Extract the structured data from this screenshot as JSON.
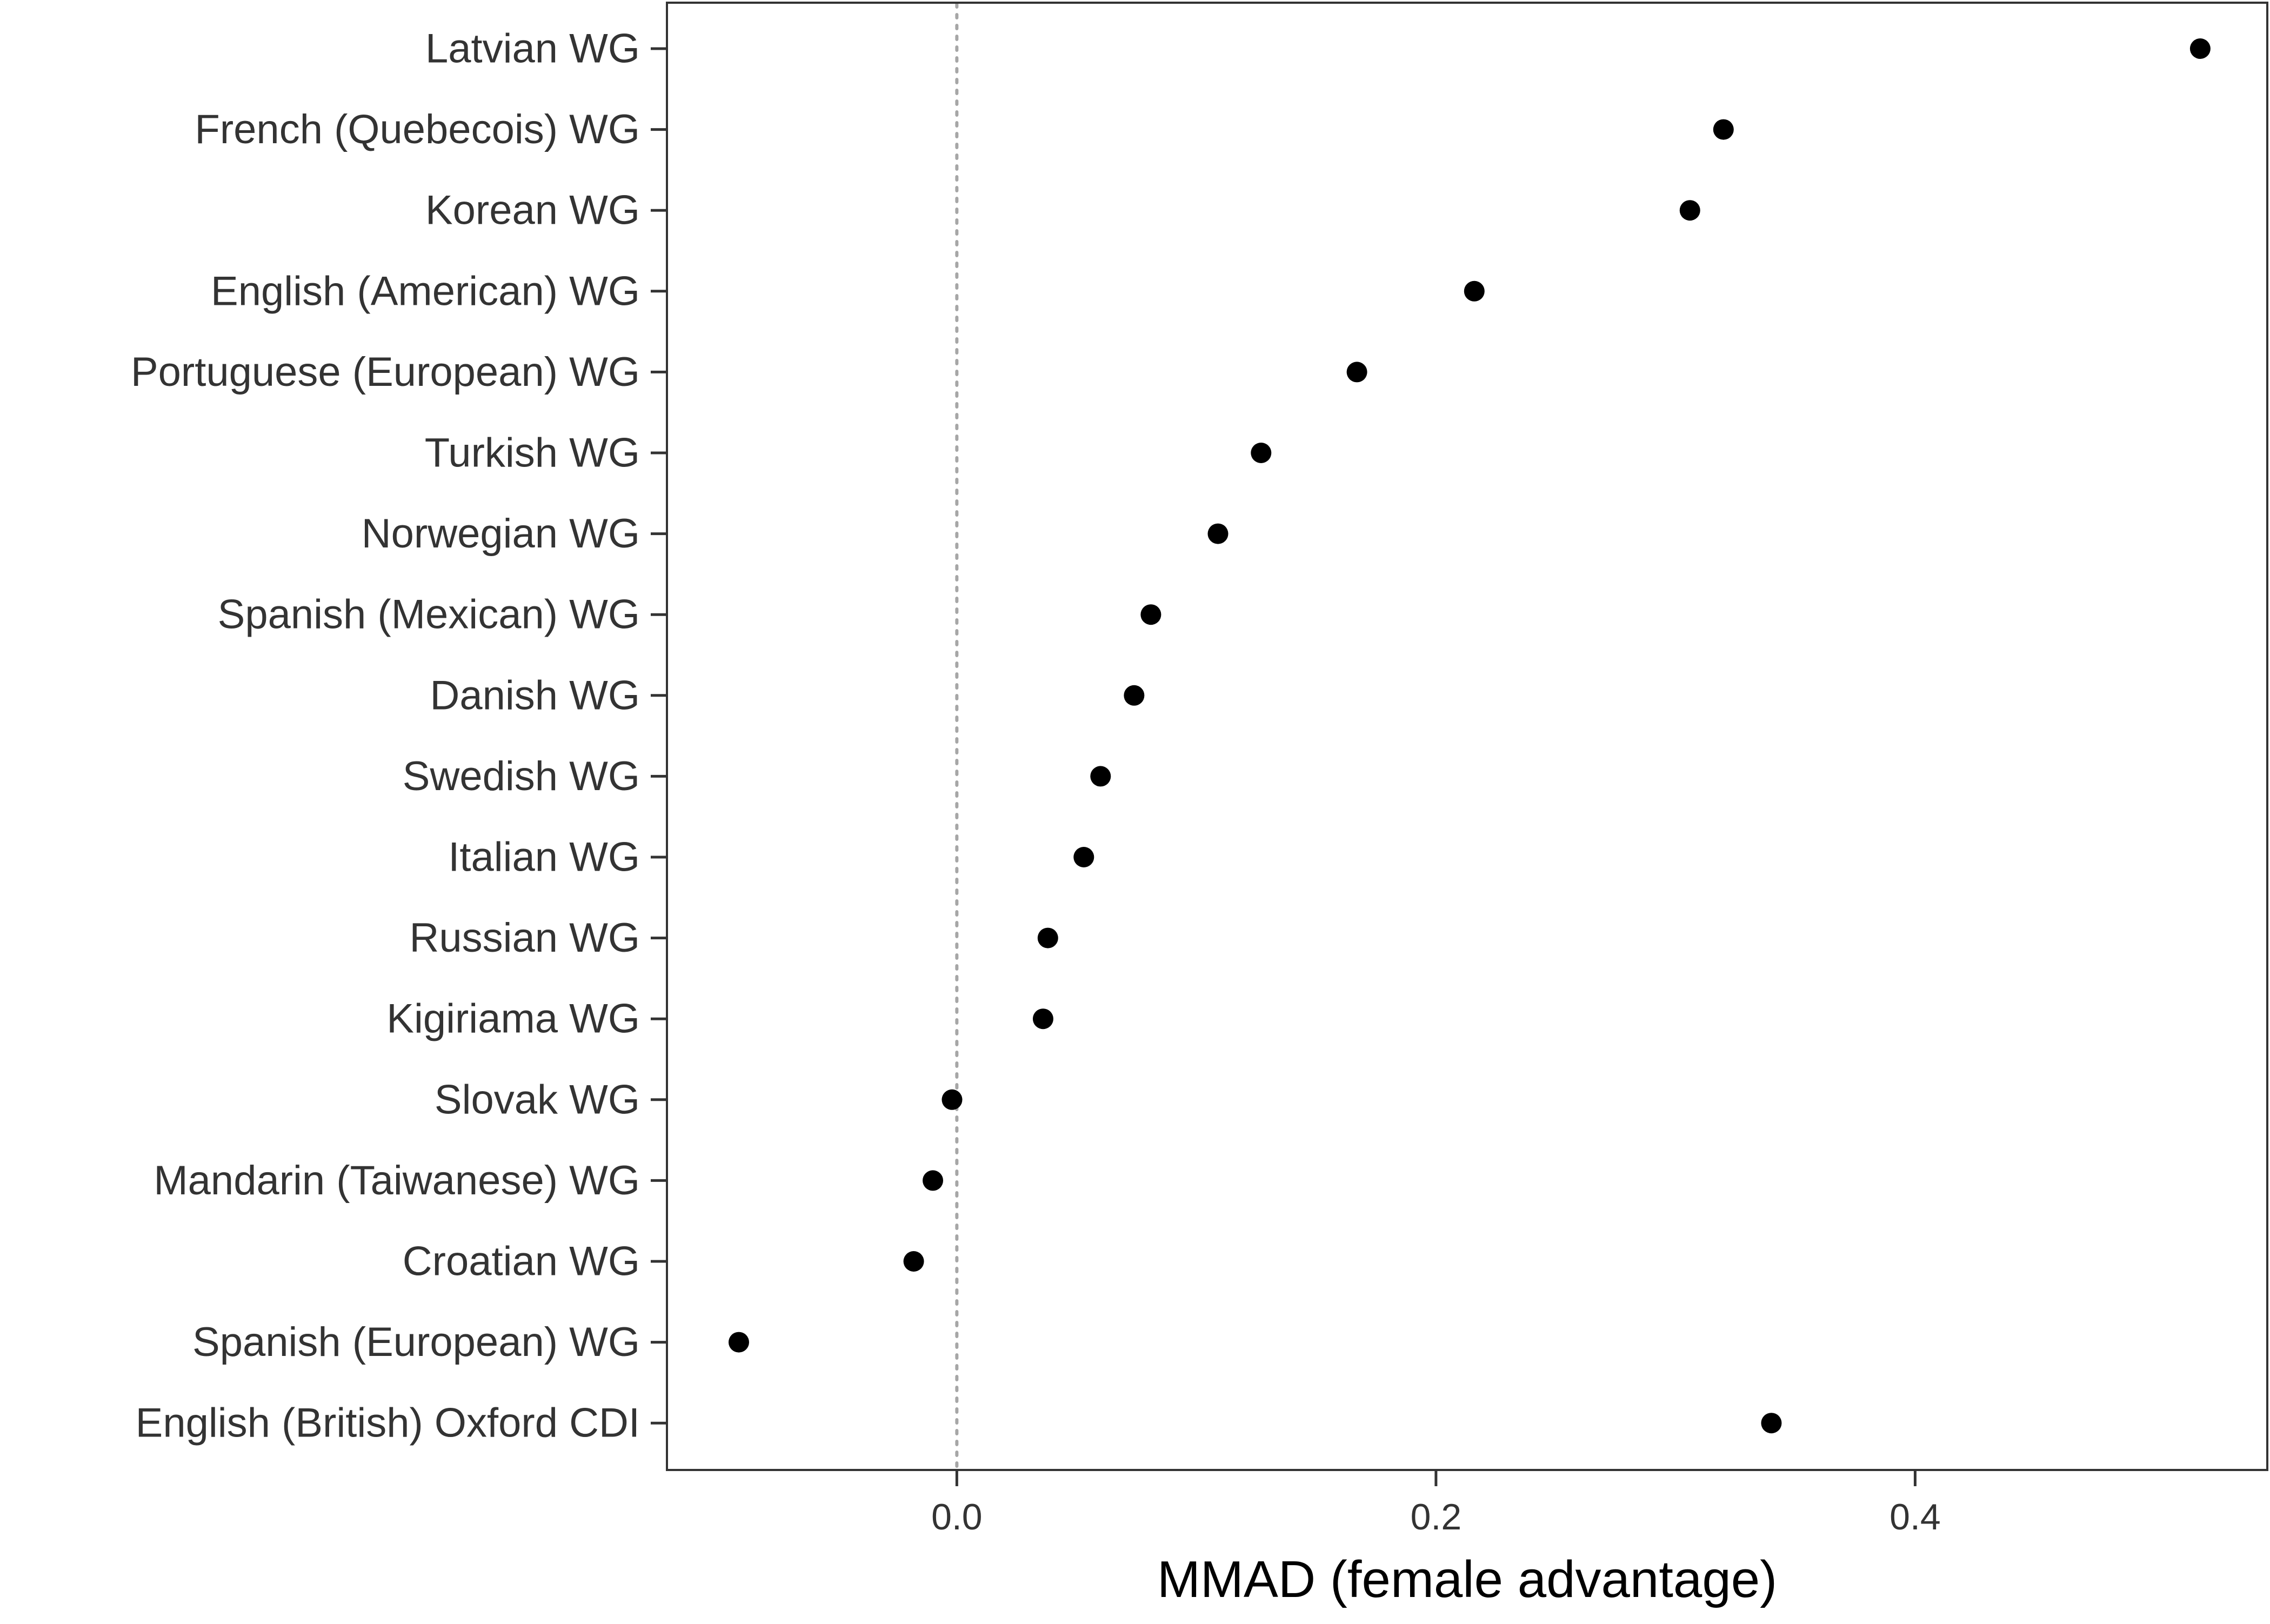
{
  "chart_data": {
    "type": "scatter",
    "title": "",
    "xlabel": "MMAD (female advantage)",
    "ylabel": "",
    "xlim": [
      -0.121,
      0.547
    ],
    "xticks": [
      0.0,
      0.2,
      0.4
    ],
    "xtick_labels": [
      "0.0",
      "0.2",
      "0.4"
    ],
    "reference_line": {
      "x": 0.0,
      "style": "dotted",
      "color": "#a6a6a6"
    },
    "grid": false,
    "legend": "none",
    "point_color": "#000000",
    "categories": [
      "Latvian WG",
      "French (Quebecois) WG",
      "Korean WG",
      "English (American) WG",
      "Portuguese (European) WG",
      "Turkish WG",
      "Norwegian WG",
      "Spanish (Mexican) WG",
      "Danish WG",
      "Swedish WG",
      "Italian WG",
      "Russian WG",
      "Kigiriama WG",
      "Slovak WG",
      "Mandarin (Taiwanese) WG",
      "Croatian WG",
      "Spanish (European) WG",
      "English (British) Oxford CDI"
    ],
    "values": [
      0.519,
      0.32,
      0.306,
      0.216,
      0.167,
      0.127,
      0.109,
      0.081,
      0.074,
      0.06,
      0.053,
      0.038,
      0.036,
      -0.002,
      -0.01,
      -0.018,
      -0.091,
      0.34
    ]
  }
}
